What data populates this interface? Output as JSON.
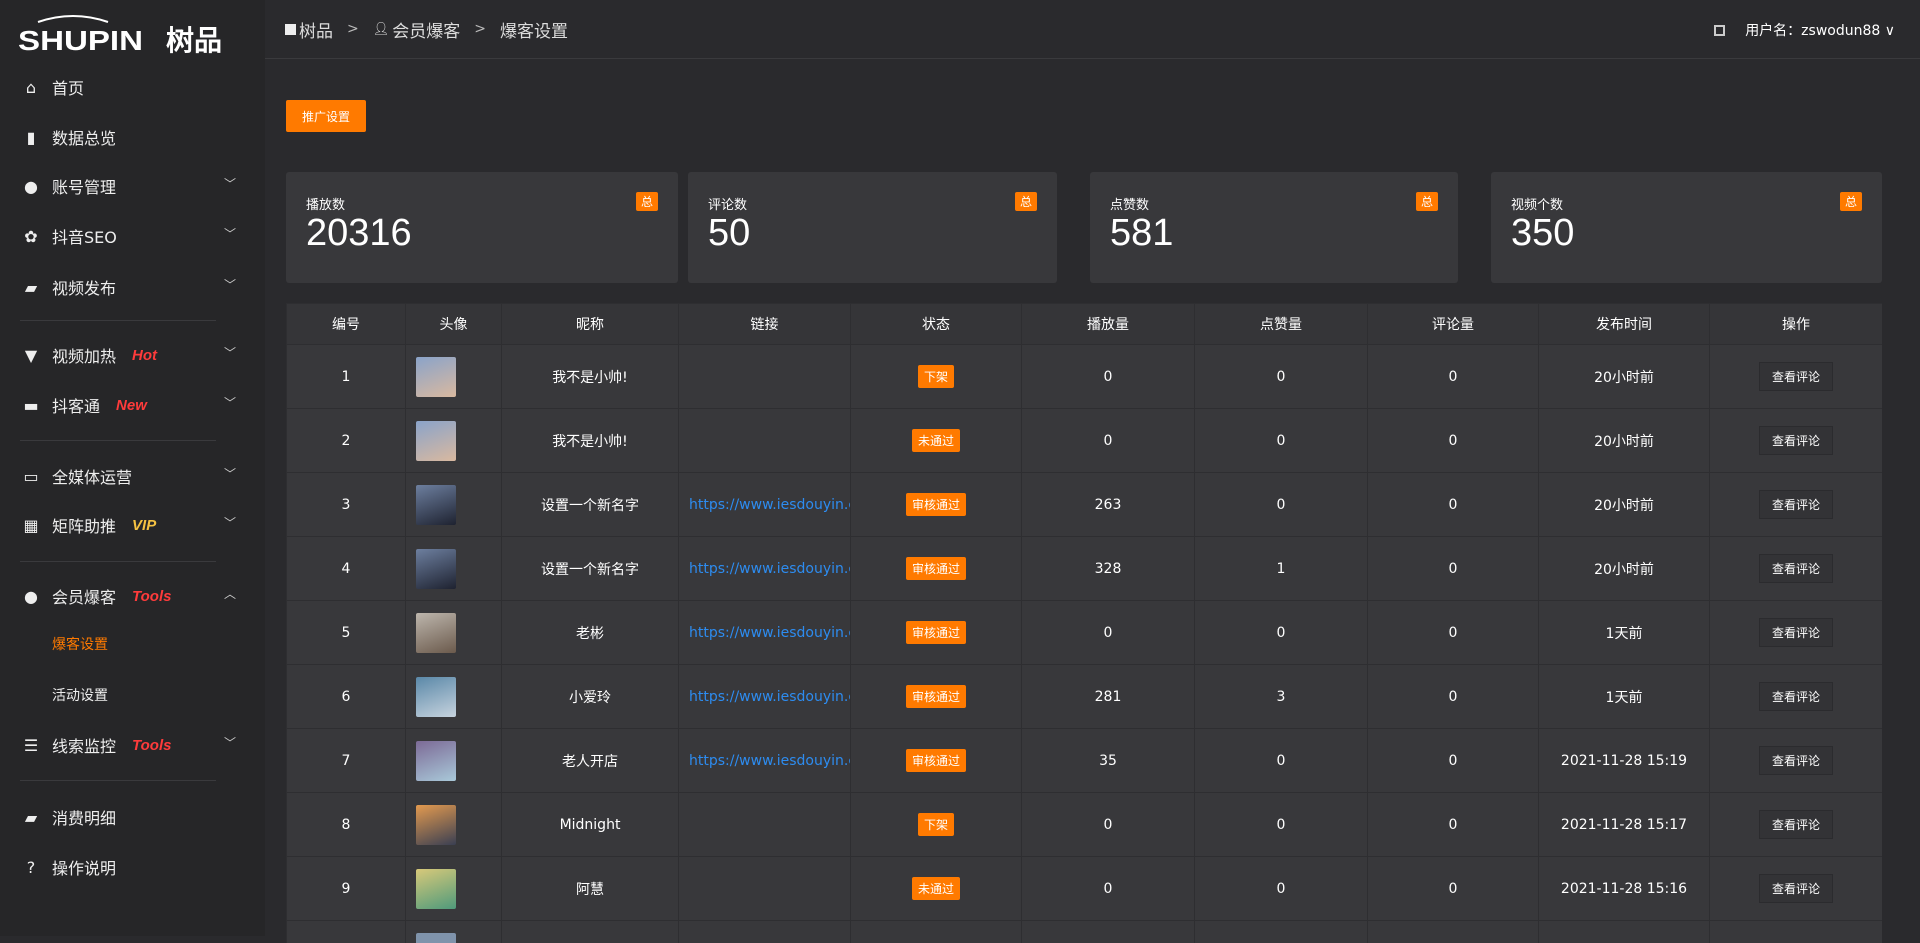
{
  "brand": {
    "logo_text": "SHUPIN 树品",
    "accent": "#ff7a00"
  },
  "sidebar": {
    "items": [
      {
        "label": "首页",
        "icon": "home-icon"
      },
      {
        "label": "数据总览",
        "icon": "bar-chart-icon"
      },
      {
        "label": "账号管理",
        "icon": "user-icon",
        "chevron": "down"
      },
      {
        "label": "抖音SEO",
        "icon": "gear-icon",
        "chevron": "down"
      },
      {
        "label": "视频发布",
        "icon": "camera-icon",
        "chevron": "down"
      },
      {
        "label": "视频加热",
        "icon": "sign-icon",
        "tag": "Hot",
        "tag_color": "#ff3b3b",
        "chevron": "down"
      },
      {
        "label": "抖客通",
        "icon": "chat-icon",
        "tag": "New",
        "tag_color": "#ff3b3b",
        "chevron": "down"
      },
      {
        "label": "全媒体运营",
        "icon": "monitor-icon",
        "chevron": "down"
      },
      {
        "label": "矩阵助推",
        "icon": "grid-icon",
        "tag": "VIP",
        "tag_color": "#f5c242",
        "chevron": "down"
      },
      {
        "label": "会员爆客",
        "icon": "user-icon",
        "tag": "Tools",
        "tag_color": "#ff3b3b",
        "chevron": "up"
      },
      {
        "label": "线索监控",
        "icon": "sliders-icon",
        "tag": "Tools",
        "tag_color": "#ff3b3b",
        "chevron": "down"
      },
      {
        "label": "消费明细",
        "icon": "wallet-icon"
      },
      {
        "label": "操作说明",
        "icon": "help-icon"
      }
    ],
    "subitems": [
      {
        "label": "爆客设置",
        "active": true
      },
      {
        "label": "活动设置"
      }
    ]
  },
  "header": {
    "breadcrumb": [
      "树品",
      "会员爆客",
      "爆客设置"
    ],
    "user_label": "用户名：zswodun88"
  },
  "toolbar": {
    "promo_button": "推广设置"
  },
  "stats": [
    {
      "label": "播放数",
      "value": "20316",
      "badge": "总"
    },
    {
      "label": "评论数",
      "value": "50",
      "badge": "总"
    },
    {
      "label": "点赞数",
      "value": "581",
      "badge": "总"
    },
    {
      "label": "视频个数",
      "value": "350",
      "badge": "总"
    }
  ],
  "table": {
    "headers": [
      "编号",
      "头像",
      "昵称",
      "链接",
      "状态",
      "播放量",
      "点赞量",
      "评论量",
      "发布时间",
      "操作"
    ],
    "action_label": "查看评论",
    "rows": [
      {
        "id": "1",
        "name": "我不是小帅!",
        "link": "",
        "status": "下架",
        "plays": "0",
        "likes": "0",
        "comments": "0",
        "time": "20小时前"
      },
      {
        "id": "2",
        "name": "我不是小帅!",
        "link": "",
        "status": "未通过",
        "plays": "0",
        "likes": "0",
        "comments": "0",
        "time": "20小时前"
      },
      {
        "id": "3",
        "name": "设置一个新名字",
        "link": "https://www.iesdouyin.c",
        "status": "审核通过",
        "plays": "263",
        "likes": "0",
        "comments": "0",
        "time": "20小时前"
      },
      {
        "id": "4",
        "name": "设置一个新名字",
        "link": "https://www.iesdouyin.c",
        "status": "审核通过",
        "plays": "328",
        "likes": "1",
        "comments": "0",
        "time": "20小时前"
      },
      {
        "id": "5",
        "name": "老彬",
        "link": "https://www.iesdouyin.c",
        "status": "审核通过",
        "plays": "0",
        "likes": "0",
        "comments": "0",
        "time": "1天前"
      },
      {
        "id": "6",
        "name": "小爱玲",
        "link": "https://www.iesdouyin.c",
        "status": "审核通过",
        "plays": "281",
        "likes": "3",
        "comments": "0",
        "time": "1天前"
      },
      {
        "id": "7",
        "name": "老人开店",
        "link": "https://www.iesdouyin.c",
        "status": "审核通过",
        "plays": "35",
        "likes": "0",
        "comments": "0",
        "time": "2021-11-28 15:19"
      },
      {
        "id": "8",
        "name": "Midnight",
        "link": "",
        "status": "下架",
        "plays": "0",
        "likes": "0",
        "comments": "0",
        "time": "2021-11-28 15:17"
      },
      {
        "id": "9",
        "name": "阿慧",
        "link": "",
        "status": "未通过",
        "plays": "0",
        "likes": "0",
        "comments": "0",
        "time": "2021-11-28 15:16"
      }
    ]
  }
}
